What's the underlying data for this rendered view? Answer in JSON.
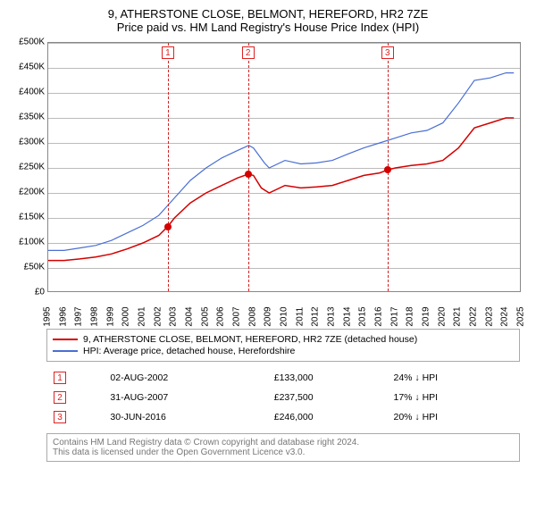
{
  "title": "9, ATHERSTONE CLOSE, BELMONT, HEREFORD, HR2 7ZE",
  "subtitle": "Price paid vs. HM Land Registry's House Price Index (HPI)",
  "chart": {
    "type": "line",
    "background_color": "#ffffff",
    "grid_color": "#bbbbbb",
    "axis_color": "#888888",
    "y_axis": {
      "min": 0,
      "max": 500000,
      "tick_step": 50000,
      "labels": [
        "£0",
        "£50K",
        "£100K",
        "£150K",
        "£200K",
        "£250K",
        "£300K",
        "£350K",
        "£400K",
        "£450K",
        "£500K"
      ]
    },
    "x_axis": {
      "min": 1995,
      "max": 2025,
      "labels": [
        "1995",
        "1996",
        "1997",
        "1998",
        "1999",
        "2000",
        "2001",
        "2002",
        "2003",
        "2004",
        "2005",
        "2006",
        "2007",
        "2008",
        "2009",
        "2010",
        "2011",
        "2012",
        "2013",
        "2014",
        "2015",
        "2016",
        "2017",
        "2018",
        "2019",
        "2020",
        "2021",
        "2022",
        "2023",
        "2024",
        "2025"
      ]
    },
    "series": [
      {
        "name": "price_paid",
        "label": "9, ATHERSTONE CLOSE, BELMONT, HEREFORD, HR2 7ZE (detached house)",
        "color": "#d40000",
        "line_width": 1.5,
        "data": [
          [
            1995,
            65000
          ],
          [
            1996,
            65000
          ],
          [
            1997,
            68000
          ],
          [
            1998,
            72000
          ],
          [
            1999,
            78000
          ],
          [
            2000,
            88000
          ],
          [
            2001,
            100000
          ],
          [
            2002,
            115000
          ],
          [
            2002.58,
            133000
          ],
          [
            2003,
            150000
          ],
          [
            2004,
            180000
          ],
          [
            2005,
            200000
          ],
          [
            2006,
            215000
          ],
          [
            2007,
            230000
          ],
          [
            2007.66,
            237500
          ],
          [
            2008,
            235000
          ],
          [
            2008.5,
            210000
          ],
          [
            2009,
            200000
          ],
          [
            2010,
            215000
          ],
          [
            2011,
            210000
          ],
          [
            2012,
            212000
          ],
          [
            2013,
            215000
          ],
          [
            2014,
            225000
          ],
          [
            2015,
            235000
          ],
          [
            2016,
            240000
          ],
          [
            2016.5,
            246000
          ],
          [
            2017,
            250000
          ],
          [
            2018,
            255000
          ],
          [
            2019,
            258000
          ],
          [
            2020,
            265000
          ],
          [
            2021,
            290000
          ],
          [
            2022,
            330000
          ],
          [
            2023,
            340000
          ],
          [
            2024,
            350000
          ],
          [
            2024.5,
            350000
          ]
        ]
      },
      {
        "name": "hpi",
        "label": "HPI: Average price, detached house, Herefordshire",
        "color": "#4a6fd4",
        "line_width": 1.2,
        "data": [
          [
            1995,
            85000
          ],
          [
            1996,
            85000
          ],
          [
            1997,
            90000
          ],
          [
            1998,
            95000
          ],
          [
            1999,
            105000
          ],
          [
            2000,
            120000
          ],
          [
            2001,
            135000
          ],
          [
            2002,
            155000
          ],
          [
            2003,
            190000
          ],
          [
            2004,
            225000
          ],
          [
            2005,
            250000
          ],
          [
            2006,
            270000
          ],
          [
            2007,
            285000
          ],
          [
            2007.7,
            295000
          ],
          [
            2008,
            290000
          ],
          [
            2008.7,
            260000
          ],
          [
            2009,
            250000
          ],
          [
            2010,
            265000
          ],
          [
            2011,
            258000
          ],
          [
            2012,
            260000
          ],
          [
            2013,
            265000
          ],
          [
            2014,
            278000
          ],
          [
            2015,
            290000
          ],
          [
            2016,
            300000
          ],
          [
            2017,
            310000
          ],
          [
            2018,
            320000
          ],
          [
            2019,
            325000
          ],
          [
            2020,
            340000
          ],
          [
            2021,
            380000
          ],
          [
            2022,
            425000
          ],
          [
            2023,
            430000
          ],
          [
            2024,
            440000
          ],
          [
            2024.5,
            440000
          ]
        ]
      }
    ],
    "transaction_markers": [
      {
        "n": "1",
        "x": 2002.58,
        "y": 133000,
        "line_color": "#d22222"
      },
      {
        "n": "2",
        "x": 2007.66,
        "y": 237500,
        "line_color": "#d22222"
      },
      {
        "n": "3",
        "x": 2016.5,
        "y": 246000,
        "line_color": "#d22222"
      }
    ],
    "point_marker_color": "#d40000"
  },
  "legend": {
    "items": [
      {
        "color": "#d40000",
        "label": "9, ATHERSTONE CLOSE, BELMONT, HEREFORD, HR2 7ZE (detached house)"
      },
      {
        "color": "#4a6fd4",
        "label": "HPI: Average price, detached house, Herefordshire"
      }
    ]
  },
  "transactions": [
    {
      "n": "1",
      "date": "02-AUG-2002",
      "price": "£133,000",
      "delta": "24% ↓ HPI"
    },
    {
      "n": "2",
      "date": "31-AUG-2007",
      "price": "£237,500",
      "delta": "17% ↓ HPI"
    },
    {
      "n": "3",
      "date": "30-JUN-2016",
      "price": "£246,000",
      "delta": "20% ↓ HPI"
    }
  ],
  "footer": {
    "line1": "Contains HM Land Registry data © Crown copyright and database right 2024.",
    "line2": "This data is licensed under the Open Government Licence v3.0."
  }
}
